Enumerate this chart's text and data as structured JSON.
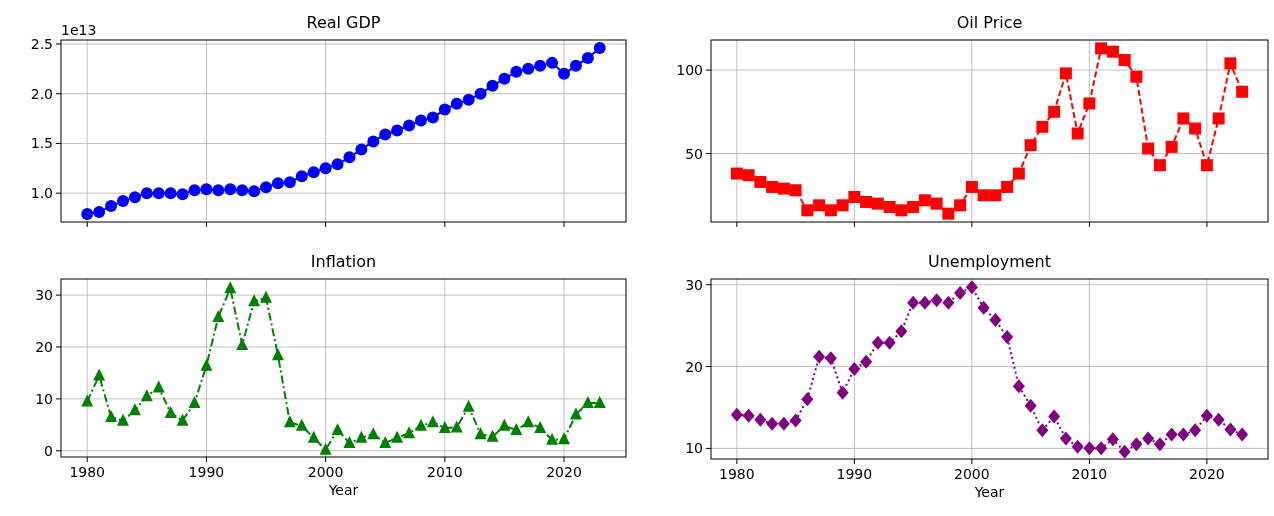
{
  "chart_data": [
    {
      "type": "line",
      "title": "Real GDP",
      "annotations": [
        "1e13"
      ],
      "x": [
        1980,
        1981,
        1982,
        1983,
        1984,
        1985,
        1986,
        1987,
        1988,
        1989,
        1990,
        1991,
        1992,
        1993,
        1994,
        1995,
        1996,
        1997,
        1998,
        1999,
        2000,
        2001,
        2002,
        2003,
        2004,
        2005,
        2006,
        2007,
        2008,
        2009,
        2010,
        2011,
        2012,
        2013,
        2014,
        2015,
        2016,
        2017,
        2018,
        2019,
        2020,
        2021,
        2022,
        2023
      ],
      "series": [
        {
          "color": "#0000ff",
          "marker": "circle",
          "line_style": "solid",
          "values": [
            0.79,
            0.81,
            0.87,
            0.92,
            0.96,
            1.0,
            1.0,
            1.0,
            0.99,
            1.03,
            1.04,
            1.03,
            1.04,
            1.03,
            1.02,
            1.06,
            1.1,
            1.11,
            1.17,
            1.21,
            1.25,
            1.29,
            1.36,
            1.44,
            1.52,
            1.59,
            1.63,
            1.68,
            1.73,
            1.76,
            1.84,
            1.9,
            1.94,
            2.0,
            2.08,
            2.15,
            2.22,
            2.25,
            2.28,
            2.31,
            2.2,
            2.28,
            2.36,
            2.46
          ]
        }
      ],
      "xlim": [
        1977.8,
        2025.2
      ],
      "xticks": [
        1980,
        1990,
        2000,
        2010,
        2020
      ],
      "ylim": [
        0.71,
        2.54
      ],
      "yticks": [
        {
          "value": 1.0,
          "label": "1.0"
        },
        {
          "value": 1.5,
          "label": "1.5"
        },
        {
          "value": 2.0,
          "label": "2.0"
        },
        {
          "value": 2.5,
          "label": "2.5"
        }
      ],
      "grid": true,
      "tick_labels": "y"
    },
    {
      "type": "line",
      "title": "Oil Price",
      "x": [
        1980,
        1981,
        1982,
        1983,
        1984,
        1985,
        1986,
        1987,
        1988,
        1989,
        1990,
        1991,
        1992,
        1993,
        1994,
        1995,
        1996,
        1997,
        1998,
        1999,
        2000,
        2001,
        2002,
        2003,
        2004,
        2005,
        2006,
        2007,
        2008,
        2009,
        2010,
        2011,
        2012,
        2013,
        2014,
        2015,
        2016,
        2017,
        2018,
        2019,
        2020,
        2021,
        2022,
        2023
      ],
      "series": [
        {
          "color": "#ff0000",
          "marker": "square",
          "line_style": "dashed",
          "values": [
            38,
            37,
            33,
            30,
            29,
            28,
            16,
            19,
            16,
            19,
            24,
            21,
            20,
            18,
            16,
            18,
            22,
            20,
            14,
            19,
            30,
            25,
            25,
            30,
            38,
            55,
            66,
            75,
            98,
            62,
            80,
            113,
            111,
            106,
            96,
            53,
            43,
            54,
            71,
            65,
            43,
            71,
            104,
            87
          ]
        }
      ],
      "xlim": [
        1977.8,
        2025.2
      ],
      "xticks": [
        1980,
        1990,
        2000,
        2010,
        2020
      ],
      "ylim": [
        9,
        118
      ],
      "yticks": [
        50,
        100
      ],
      "grid": true,
      "tick_labels": "y"
    },
    {
      "type": "line",
      "title": "Inflation",
      "xlabel": "Year",
      "x": [
        1980,
        1981,
        1982,
        1983,
        1984,
        1985,
        1986,
        1987,
        1988,
        1989,
        1990,
        1991,
        1992,
        1993,
        1994,
        1995,
        1996,
        1997,
        1998,
        1999,
        2000,
        2001,
        2002,
        2003,
        2004,
        2005,
        2006,
        2007,
        2008,
        2009,
        2010,
        2011,
        2012,
        2013,
        2014,
        2015,
        2016,
        2017,
        2018,
        2019,
        2020,
        2021,
        2022,
        2023
      ],
      "series": [
        {
          "color": "#008000",
          "marker": "triangle",
          "line_style": "dashdot",
          "values": [
            9.5,
            14.5,
            6.5,
            5.8,
            7.8,
            10.5,
            12.2,
            7.3,
            5.8,
            9.2,
            16.4,
            25.8,
            31.3,
            20.4,
            28.8,
            29.5,
            18.4,
            5.5,
            4.8,
            2.5,
            0.2,
            4.0,
            1.5,
            2.5,
            3.2,
            1.5,
            2.5,
            3.4,
            4.8,
            5.5,
            4.4,
            4.5,
            8.5,
            3.2,
            2.7,
            4.8,
            4.0,
            5.5,
            4.4,
            2.1,
            2.2,
            7.0,
            9.2,
            9.2
          ]
        }
      ],
      "xlim": [
        1977.8,
        2025.2
      ],
      "xticks": [
        1980,
        1990,
        2000,
        2010,
        2020
      ],
      "ylim": [
        -1.2,
        33.1
      ],
      "yticks": [
        0,
        10,
        20,
        30
      ],
      "grid": true
    },
    {
      "type": "line",
      "title": "Unemployment",
      "xlabel": "Year",
      "x": [
        1980,
        1981,
        1982,
        1983,
        1984,
        1985,
        1986,
        1987,
        1988,
        1989,
        1990,
        1991,
        1992,
        1993,
        1994,
        1995,
        1996,
        1997,
        1998,
        1999,
        2000,
        2001,
        2002,
        2003,
        2004,
        2005,
        2006,
        2007,
        2008,
        2009,
        2010,
        2011,
        2012,
        2013,
        2014,
        2015,
        2016,
        2017,
        2018,
        2019,
        2020,
        2021,
        2022,
        2023
      ],
      "series": [
        {
          "color": "#800080",
          "marker": "diamond",
          "line_style": "dotted",
          "values": [
            14.1,
            14.0,
            13.5,
            13.0,
            13.0,
            13.4,
            16.0,
            21.2,
            21.0,
            16.8,
            19.7,
            20.6,
            22.9,
            22.9,
            24.3,
            27.8,
            27.8,
            28.1,
            27.8,
            29.0,
            29.7,
            27.2,
            25.7,
            23.6,
            17.6,
            15.2,
            12.2,
            13.9,
            11.2,
            10.2,
            10.0,
            10.0,
            11.1,
            9.6,
            10.5,
            11.2,
            10.5,
            11.7,
            11.7,
            12.2,
            14.0,
            13.5,
            12.3,
            11.7
          ]
        }
      ],
      "xlim": [
        1977.8,
        2025.2
      ],
      "xticks": [
        1980,
        1990,
        2000,
        2010,
        2020
      ],
      "ylim": [
        8.7,
        30.7
      ],
      "yticks": [
        10,
        20,
        30
      ],
      "grid": true
    }
  ]
}
